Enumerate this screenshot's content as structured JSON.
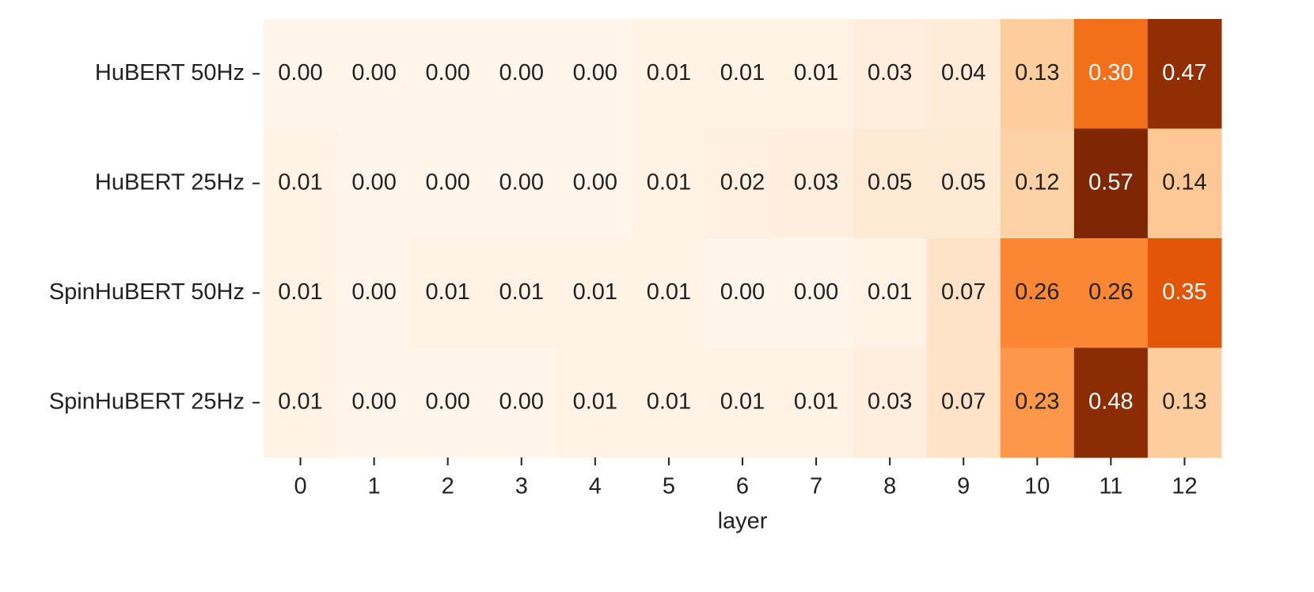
{
  "chart_data": {
    "type": "heatmap",
    "xlabel": "layer",
    "categories": [
      0,
      1,
      2,
      3,
      4,
      5,
      6,
      7,
      8,
      9,
      10,
      11,
      12
    ],
    "y_categories": [
      "HuBERT 50Hz",
      "HuBERT 25Hz",
      "SpinHuBERT 50Hz",
      "SpinHuBERT 25Hz"
    ],
    "values": [
      [
        0,
        0,
        0,
        0,
        0,
        0.01,
        0.01,
        0.01,
        0.03,
        0.04,
        0.13,
        0.3,
        0.47
      ],
      [
        0.01,
        0,
        0,
        0,
        0,
        0.01,
        0.02,
        0.03,
        0.05,
        0.05,
        0.12,
        0.57,
        0.14
      ],
      [
        0.01,
        0,
        0.01,
        0.01,
        0.01,
        0.01,
        0,
        0,
        0.01,
        0.07,
        0.26,
        0.26,
        0.35
      ],
      [
        0.01,
        0,
        0,
        0,
        0.01,
        0.01,
        0.01,
        0.01,
        0.03,
        0.07,
        0.23,
        0.48,
        0.13
      ]
    ],
    "value_labels": [
      [
        "0.00",
        "0.00",
        "0.00",
        "0.00",
        "0.00",
        "0.01",
        "0.01",
        "0.01",
        "0.03",
        "0.04",
        "0.13",
        "0.30",
        "0.47"
      ],
      [
        "0.01",
        "0.00",
        "0.00",
        "0.00",
        "0.00",
        "0.01",
        "0.02",
        "0.03",
        "0.05",
        "0.05",
        "0.12",
        "0.57",
        "0.14"
      ],
      [
        "0.01",
        "0.00",
        "0.01",
        "0.01",
        "0.01",
        "0.01",
        "0.00",
        "0.00",
        "0.01",
        "0.07",
        "0.26",
        "0.26",
        "0.35"
      ],
      [
        "0.01",
        "0.00",
        "0.00",
        "0.00",
        "0.01",
        "0.01",
        "0.01",
        "0.01",
        "0.03",
        "0.07",
        "0.23",
        "0.48",
        "0.13"
      ]
    ],
    "clim": [
      0,
      0.5
    ],
    "colormap": [
      "#fff5eb",
      "#fee6ce",
      "#fdd0a2",
      "#fdae6b",
      "#fd8d3c",
      "#f16913",
      "#d94801",
      "#a63603",
      "#7f2704"
    ]
  }
}
